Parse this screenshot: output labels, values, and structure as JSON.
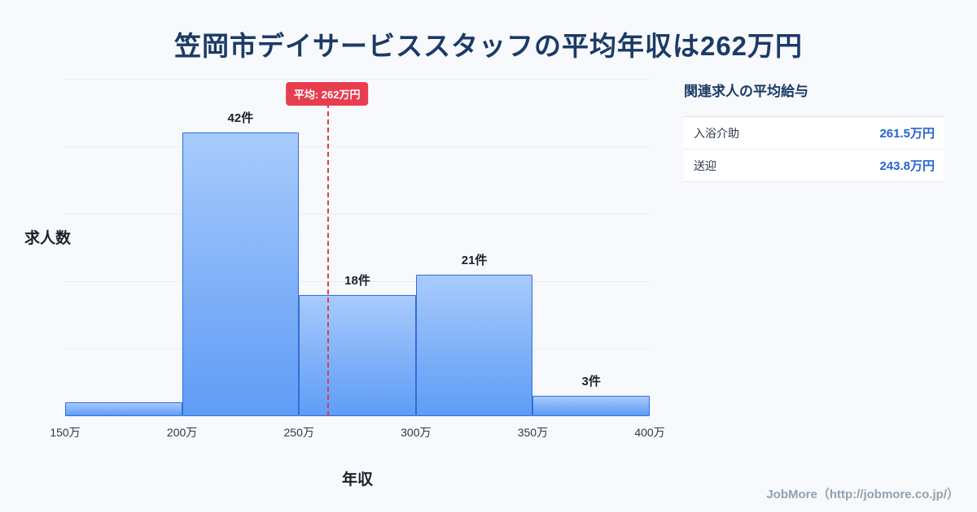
{
  "chart_data": {
    "type": "bar",
    "title": "笠岡市デイサービススタッフの平均年収は262万円",
    "xlabel": "年収",
    "ylabel": "求人数",
    "xlim": [
      150,
      400
    ],
    "ylim": [
      0,
      50
    ],
    "grid": "horizontal",
    "x_ticks": [
      "150万",
      "200万",
      "250万",
      "300万",
      "350万",
      "400万"
    ],
    "bins": [
      {
        "range": [
          150,
          200
        ],
        "count": 2,
        "label": ""
      },
      {
        "range": [
          200,
          250
        ],
        "count": 42,
        "label": "42件"
      },
      {
        "range": [
          250,
          300
        ],
        "count": 18,
        "label": "18件"
      },
      {
        "range": [
          300,
          350
        ],
        "count": 21,
        "label": "21件"
      },
      {
        "range": [
          350,
          400
        ],
        "count": 3,
        "label": "3件"
      }
    ],
    "mean": {
      "value": 262,
      "label": "平均: 262万円"
    }
  },
  "side_panel": {
    "title": "関連求人の平均給与",
    "rows": [
      {
        "label": "入浴介助",
        "value": "261.5万円"
      },
      {
        "label": "送迎",
        "value": "243.8万円"
      }
    ]
  },
  "footer": {
    "credit": "JobMore（http://jobmore.co.jp/）"
  },
  "colors": {
    "background": "#f7f9fd",
    "title": "#1b3a66",
    "bar_fill_top": "#a8cbfc",
    "bar_fill_bottom": "#5f9df6",
    "bar_border": "#2f6fd8",
    "mean_line": "#e03a4b",
    "mean_badge_bg": "#e83d4e",
    "value_text": "#2563d4",
    "gridline": "#e9edf4"
  }
}
